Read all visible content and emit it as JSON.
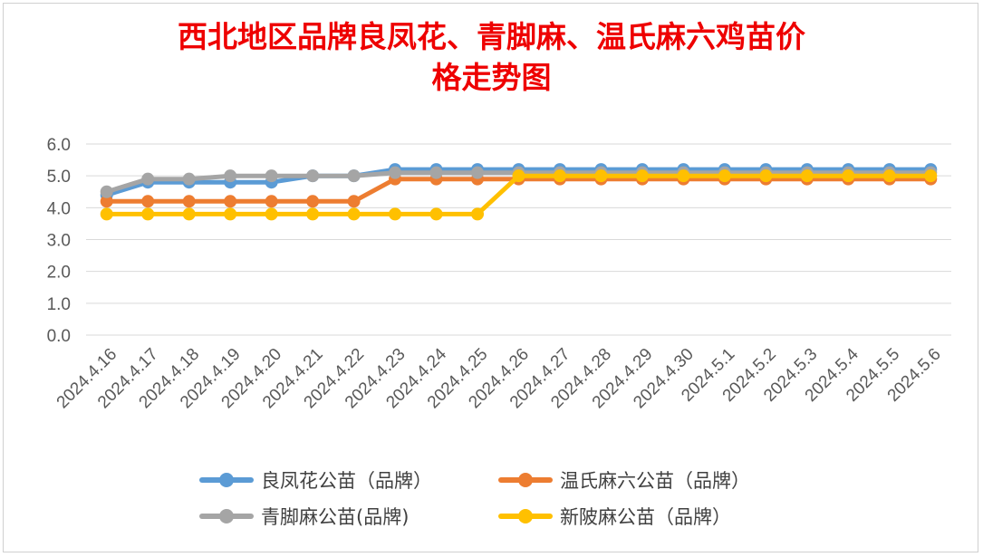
{
  "title": {
    "line1": "西北地区品牌良凤花、青脚麻、温氏麻六鸡苗价",
    "line2": "格走势图"
  },
  "chart_data": {
    "type": "line",
    "x": [
      "2024.4.16",
      "2024.4.17",
      "2024.4.18",
      "2024.4.19",
      "2024.4.20",
      "2024.4.21",
      "2024.4.22",
      "2024.4.23",
      "2024.4.24",
      "2024.4.25",
      "2024.4.26",
      "2024.4.27",
      "2024.4.28",
      "2024.4.29",
      "2024.4.30",
      "2024.5.1",
      "2024.5.2",
      "2024.5.3",
      "2024.5.4",
      "2024.5.5",
      "2024.5.6"
    ],
    "y_ticks": [
      "0.0",
      "1.0",
      "2.0",
      "3.0",
      "4.0",
      "5.0",
      "6.0"
    ],
    "ylim": [
      0,
      6
    ],
    "grid": true,
    "legend_position": "bottom",
    "series": [
      {
        "name": "良凤花公苗（品牌）",
        "color": "#5B9BD5",
        "values": [
          4.4,
          4.8,
          4.8,
          4.8,
          4.8,
          5.0,
          5.0,
          5.2,
          5.2,
          5.2,
          5.2,
          5.2,
          5.2,
          5.2,
          5.2,
          5.2,
          5.2,
          5.2,
          5.2,
          5.2,
          5.2
        ]
      },
      {
        "name": "温氏麻六公苗（品牌）",
        "color": "#ED7D31",
        "values": [
          4.2,
          4.2,
          4.2,
          4.2,
          4.2,
          4.2,
          4.2,
          4.9,
          4.9,
          4.9,
          4.9,
          4.9,
          4.9,
          4.9,
          4.9,
          4.9,
          4.9,
          4.9,
          4.9,
          4.9,
          4.9
        ]
      },
      {
        "name": "青脚麻公苗(品牌)",
        "color": "#A5A5A5",
        "values": [
          4.5,
          4.9,
          4.9,
          5.0,
          5.0,
          5.0,
          5.0,
          5.1,
          5.1,
          5.1,
          5.1,
          5.1,
          5.1,
          5.1,
          5.1,
          5.1,
          5.1,
          5.1,
          5.1,
          5.1,
          5.1
        ]
      },
      {
        "name": "新陂麻公苗（品牌）",
        "color": "#FFC000",
        "values": [
          3.8,
          3.8,
          3.8,
          3.8,
          3.8,
          3.8,
          3.8,
          3.8,
          3.8,
          3.8,
          5.0,
          5.0,
          5.0,
          5.0,
          5.0,
          5.0,
          5.0,
          5.0,
          5.0,
          5.0,
          5.0
        ]
      }
    ]
  }
}
